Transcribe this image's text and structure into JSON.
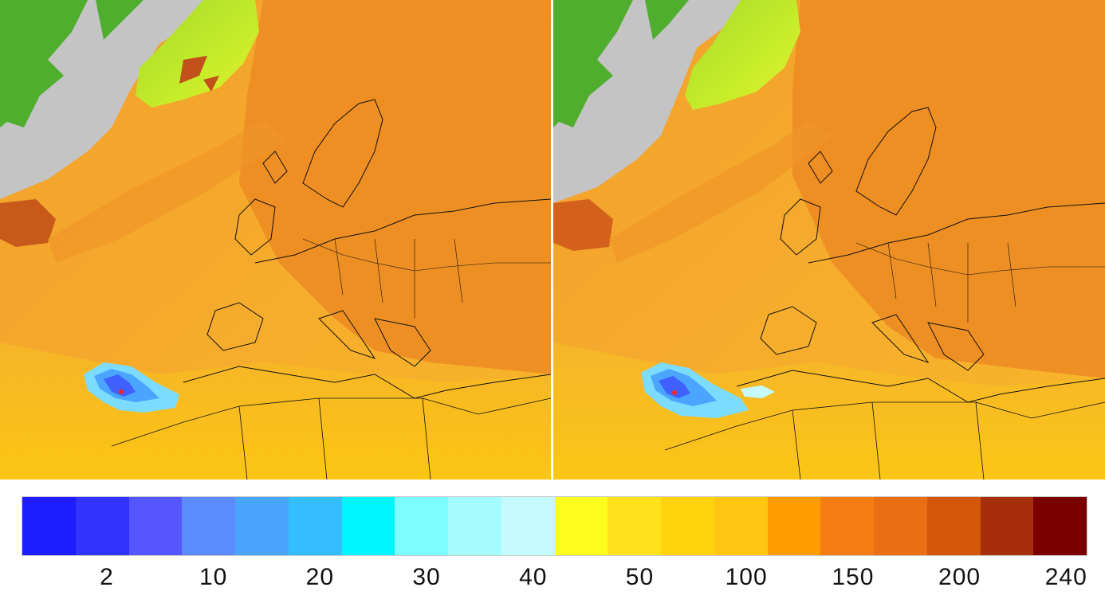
{
  "panels": [
    {
      "name": "left-map"
    },
    {
      "name": "right-map"
    }
  ],
  "colorbar": {
    "colors": [
      "#1d1dff",
      "#3333ff",
      "#5656ff",
      "#5b8bff",
      "#4aa5ff",
      "#35beff",
      "#00f6ff",
      "#7dfdff",
      "#a4fcff",
      "#c5fbff",
      "#fdfd1d",
      "#ffe21b",
      "#ffd30d",
      "#ffc612",
      "#ff9c00",
      "#f57d13",
      "#ea6f14",
      "#d45609",
      "#a62e0a",
      "#7a0000"
    ],
    "tick_labels": [
      "2",
      "10",
      "20",
      "30",
      "40",
      "50",
      "100",
      "150",
      "200",
      "240"
    ]
  },
  "map_colors": {
    "ocean_base": "#f3a431",
    "land_field": "#ec8e24",
    "southern_field": "#fbc814",
    "greenland_ice": "#c8ee26",
    "canada_land": "#4fae2d",
    "missing_data": "#c4c4c4",
    "plume_low": "#5cd2ff",
    "plume_core": "#3f5fff",
    "source_marker": "#ff2020",
    "coastline": "#111111"
  }
}
